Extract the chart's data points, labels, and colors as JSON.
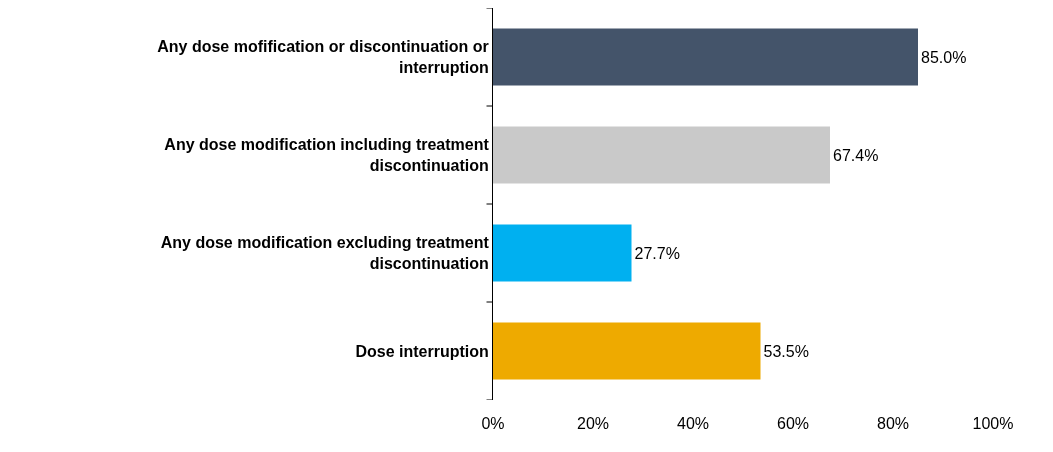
{
  "chart_data": {
    "type": "bar",
    "orientation": "horizontal",
    "categories": [
      "Any dose mofification or discontinuation or interruption",
      "Any dose modification including treatment discontinuation",
      "Any dose modification excluding treatment discontinuation",
      "Dose interruption"
    ],
    "values": [
      85.0,
      67.4,
      27.7,
      53.5
    ],
    "colors": [
      "#44546a",
      "#c9c9c9",
      "#00b0f0",
      "#eeaa00"
    ],
    "value_labels": [
      "85.0%",
      "67.4%",
      "27.7%",
      "53.5%"
    ],
    "xlim": [
      0,
      100
    ],
    "xticks": [
      {
        "value": 0,
        "label": "0%"
      },
      {
        "value": 20,
        "label": "20%"
      },
      {
        "value": 40,
        "label": "40%"
      },
      {
        "value": 60,
        "label": "60%"
      },
      {
        "value": 80,
        "label": "80%"
      },
      {
        "value": 100,
        "label": "100%"
      }
    ],
    "grid": false
  }
}
